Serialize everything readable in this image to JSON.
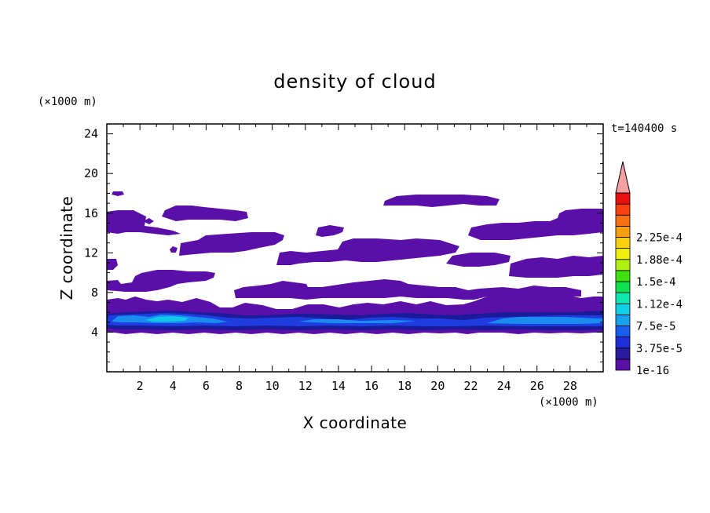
{
  "chart_data": {
    "type": "heatmap",
    "title": "density of cloud",
    "xlabel": "X coordinate",
    "ylabel": "Z coordinate",
    "x_unit": "(×1000 m)",
    "y_unit": "(×1000 m)",
    "time_label": "t=140400 s",
    "xlim": [
      0,
      30
    ],
    "ylim": [
      0,
      25
    ],
    "x_ticks": [
      2,
      4,
      6,
      8,
      10,
      12,
      14,
      16,
      18,
      20,
      22,
      24,
      26,
      28
    ],
    "y_ticks": [
      4,
      8,
      12,
      16,
      20,
      24
    ],
    "colorbar": {
      "labels": [
        "1e-16",
        "3.75e-5",
        "7.5e-5",
        "1.12e-4",
        "1.5e-4",
        "1.88e-4",
        "2.25e-4"
      ],
      "colors": [
        "#5a0fa8",
        "#2a1aa0",
        "#1e2ed8",
        "#1a5cf0",
        "#1aa0f0",
        "#10d0e8",
        "#10e8b0",
        "#10e050",
        "#40e010",
        "#b0f010",
        "#f0f010",
        "#f8d010",
        "#f8a010",
        "#f87010",
        "#f84010",
        "#e81010"
      ],
      "extend_color": "#f5a0a0"
    },
    "cloud_layers": [
      {
        "z_range": [
          3.8,
          7.0
        ],
        "x_range": [
          0,
          30
        ],
        "max_density": "7.5e-5"
      },
      {
        "z_range": [
          7.2,
          9.2
        ],
        "x_range": [
          0,
          30
        ],
        "max_density": "3.75e-5"
      },
      {
        "z_range": [
          9.5,
          13.5
        ],
        "x_range": [
          0,
          30
        ],
        "max_density": "3.75e-5"
      },
      {
        "z_range": [
          13.8,
          16.8
        ],
        "x_range": [
          0,
          30
        ],
        "max_density": "3.75e-5"
      },
      {
        "z_range": [
          17.5,
          17.9
        ],
        "x_range": [
          0.3,
          1.1
        ],
        "max_density": "1e-16"
      }
    ]
  }
}
